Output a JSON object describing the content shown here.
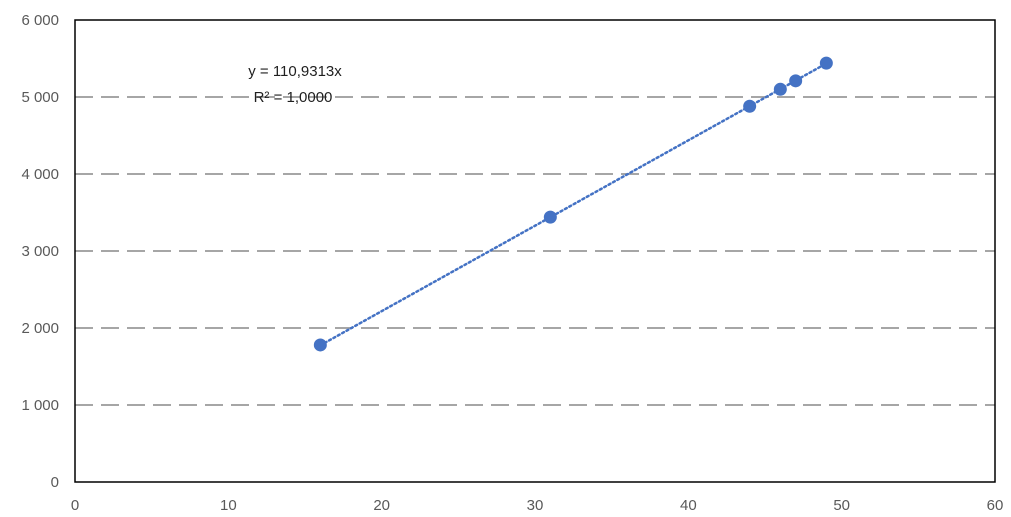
{
  "chart_data": {
    "type": "scatter",
    "title": "",
    "xlabel": "",
    "ylabel": "",
    "xlim": [
      0,
      60
    ],
    "ylim": [
      0,
      6000
    ],
    "x_ticks": [
      0,
      10,
      20,
      30,
      40,
      50,
      60
    ],
    "y_ticks": [
      0,
      1000,
      2000,
      3000,
      4000,
      5000,
      6000
    ],
    "x_tick_labels": [
      "0",
      "10",
      "20",
      "30",
      "40",
      "50",
      "60"
    ],
    "y_tick_labels": [
      "0",
      "1 000",
      "2 000",
      "3 000",
      "4 000",
      "5 000",
      "6 000"
    ],
    "grid": "horizontal dashed",
    "legend": "none",
    "series": [
      {
        "points": [
          {
            "x": 16,
            "y": 1780
          },
          {
            "x": 31,
            "y": 3440
          },
          {
            "x": 44,
            "y": 4880
          },
          {
            "x": 46,
            "y": 5100
          },
          {
            "x": 47,
            "y": 5210
          },
          {
            "x": 49,
            "y": 5440
          }
        ],
        "color": "#4472c4"
      }
    ],
    "trendline": {
      "type": "linear",
      "slope": 110.9313,
      "intercept": 0,
      "x_range": [
        16,
        49
      ],
      "style": "dotted",
      "color": "#4472c4",
      "equation": "y = 110,9313x",
      "r_squared": "R² = 1,0000"
    }
  }
}
